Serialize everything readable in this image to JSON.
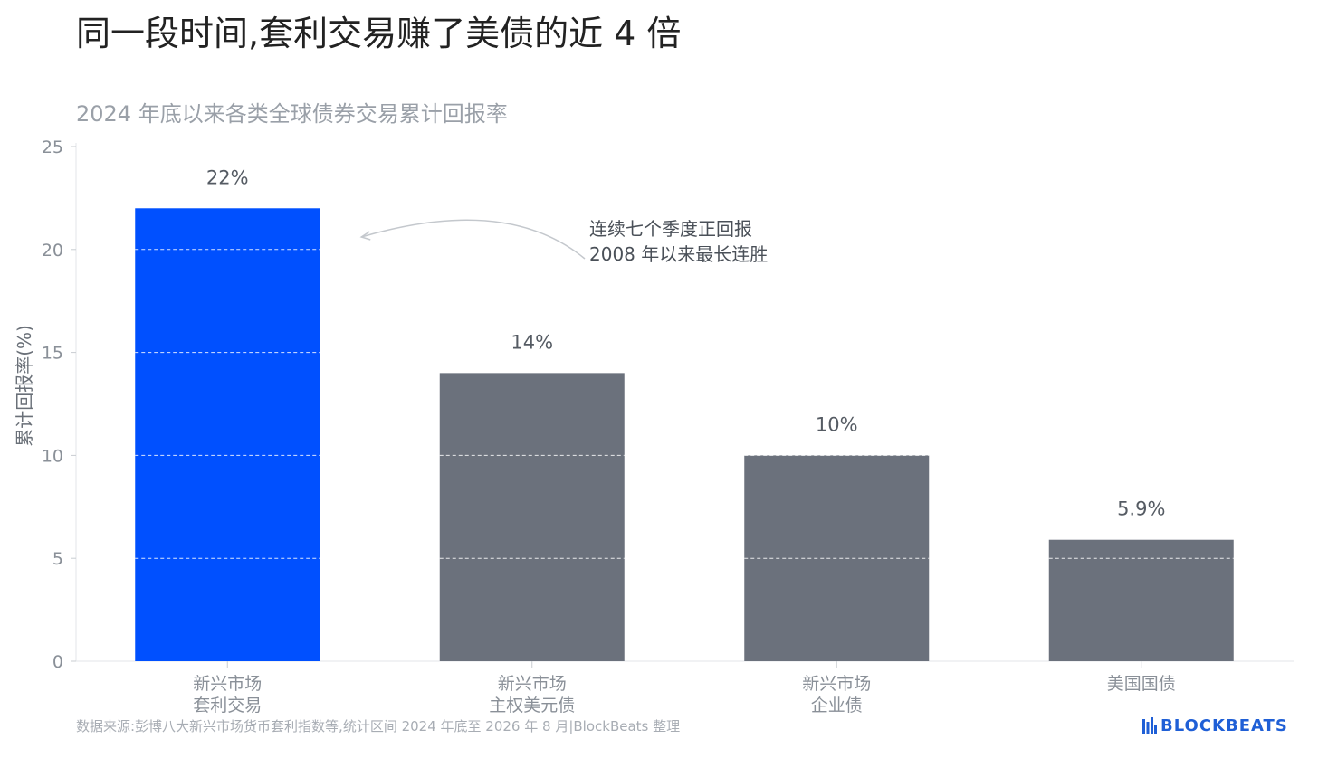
{
  "title": "同一段时间,套利交易赚了美债的近 4 倍",
  "subtitle": "2024 年底以来各类全球债券交易累计回报率",
  "chart_data": {
    "type": "bar",
    "title": "2024 年底以来各类全球债券交易累计回报率",
    "ylabel": "累计回报率(%)",
    "xlabel": "",
    "ylim": [
      0,
      25
    ],
    "yticks": [
      0,
      5,
      10,
      15,
      20,
      25
    ],
    "grid": "dashed-on-bars",
    "categories": [
      [
        "新兴市场",
        "套利交易"
      ],
      [
        "新兴市场",
        "主权美元债"
      ],
      [
        "新兴市场",
        "企业债"
      ],
      [
        "美国国债"
      ]
    ],
    "values": [
      22,
      14,
      10,
      5.9
    ],
    "value_labels": [
      "22%",
      "14%",
      "10%",
      "5.9%"
    ],
    "bar_colors": [
      "#0050ff",
      "#6b717c",
      "#6b717c",
      "#6b717c"
    ],
    "annotation": {
      "lines": [
        "连续七个季度正回报",
        "2008 年以来最长连胜"
      ],
      "points_to_category": 0
    }
  },
  "footnote": "数据来源:彭博八大新兴市场货币套利指数等,统计区间 2024 年底至 2026 年 8 月|BlockBeats 整理",
  "brand": "BLOCKBEATS",
  "colors": {
    "highlight": "#0050ff",
    "bar": "#6b717c",
    "axis_text": "#8a9098",
    "label_text": "#555b63",
    "brand": "#1f5fd6"
  }
}
